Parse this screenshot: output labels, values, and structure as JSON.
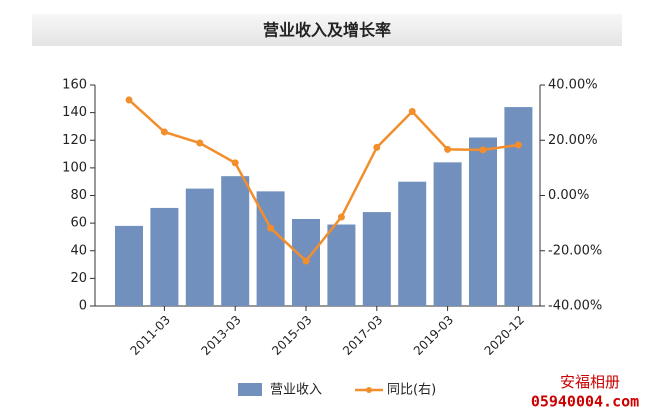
{
  "chart_data": {
    "type": "bar-line",
    "title": "营业收入及增长率",
    "categories": [
      null,
      "2011-03",
      null,
      "2013-03",
      null,
      "2015-03",
      null,
      "2017-03",
      null,
      "2019-03",
      null,
      "2020-12"
    ],
    "series": [
      {
        "name": "营业收入",
        "type": "bar",
        "color": "#7190be",
        "values": [
          58,
          71,
          85,
          94,
          83,
          63,
          59,
          68,
          90,
          104,
          122,
          144
        ]
      },
      {
        "name": "同比(右)",
        "type": "line",
        "axis": "y2",
        "color": "#f28e2b",
        "values": [
          34.6,
          23,
          19,
          11.8,
          -11.8,
          -23.7,
          -7.8,
          17.4,
          30.4,
          16.7,
          16.5,
          18.3
        ]
      }
    ],
    "ylim": [
      0,
      160
    ],
    "yticks": [
      0,
      20,
      40,
      60,
      80,
      100,
      120,
      140,
      160
    ],
    "y2lim": [
      -40,
      40
    ],
    "y2ticks": [
      {
        "value": -40,
        "label": "-40.00%"
      },
      {
        "value": -20,
        "label": "-20.00%"
      },
      {
        "value": 0,
        "label": "0.00%"
      },
      {
        "value": 20,
        "label": "20.00%"
      },
      {
        "value": 40,
        "label": "40.00%"
      }
    ],
    "watermark": [
      "安福相册",
      "05940004.com"
    ]
  }
}
